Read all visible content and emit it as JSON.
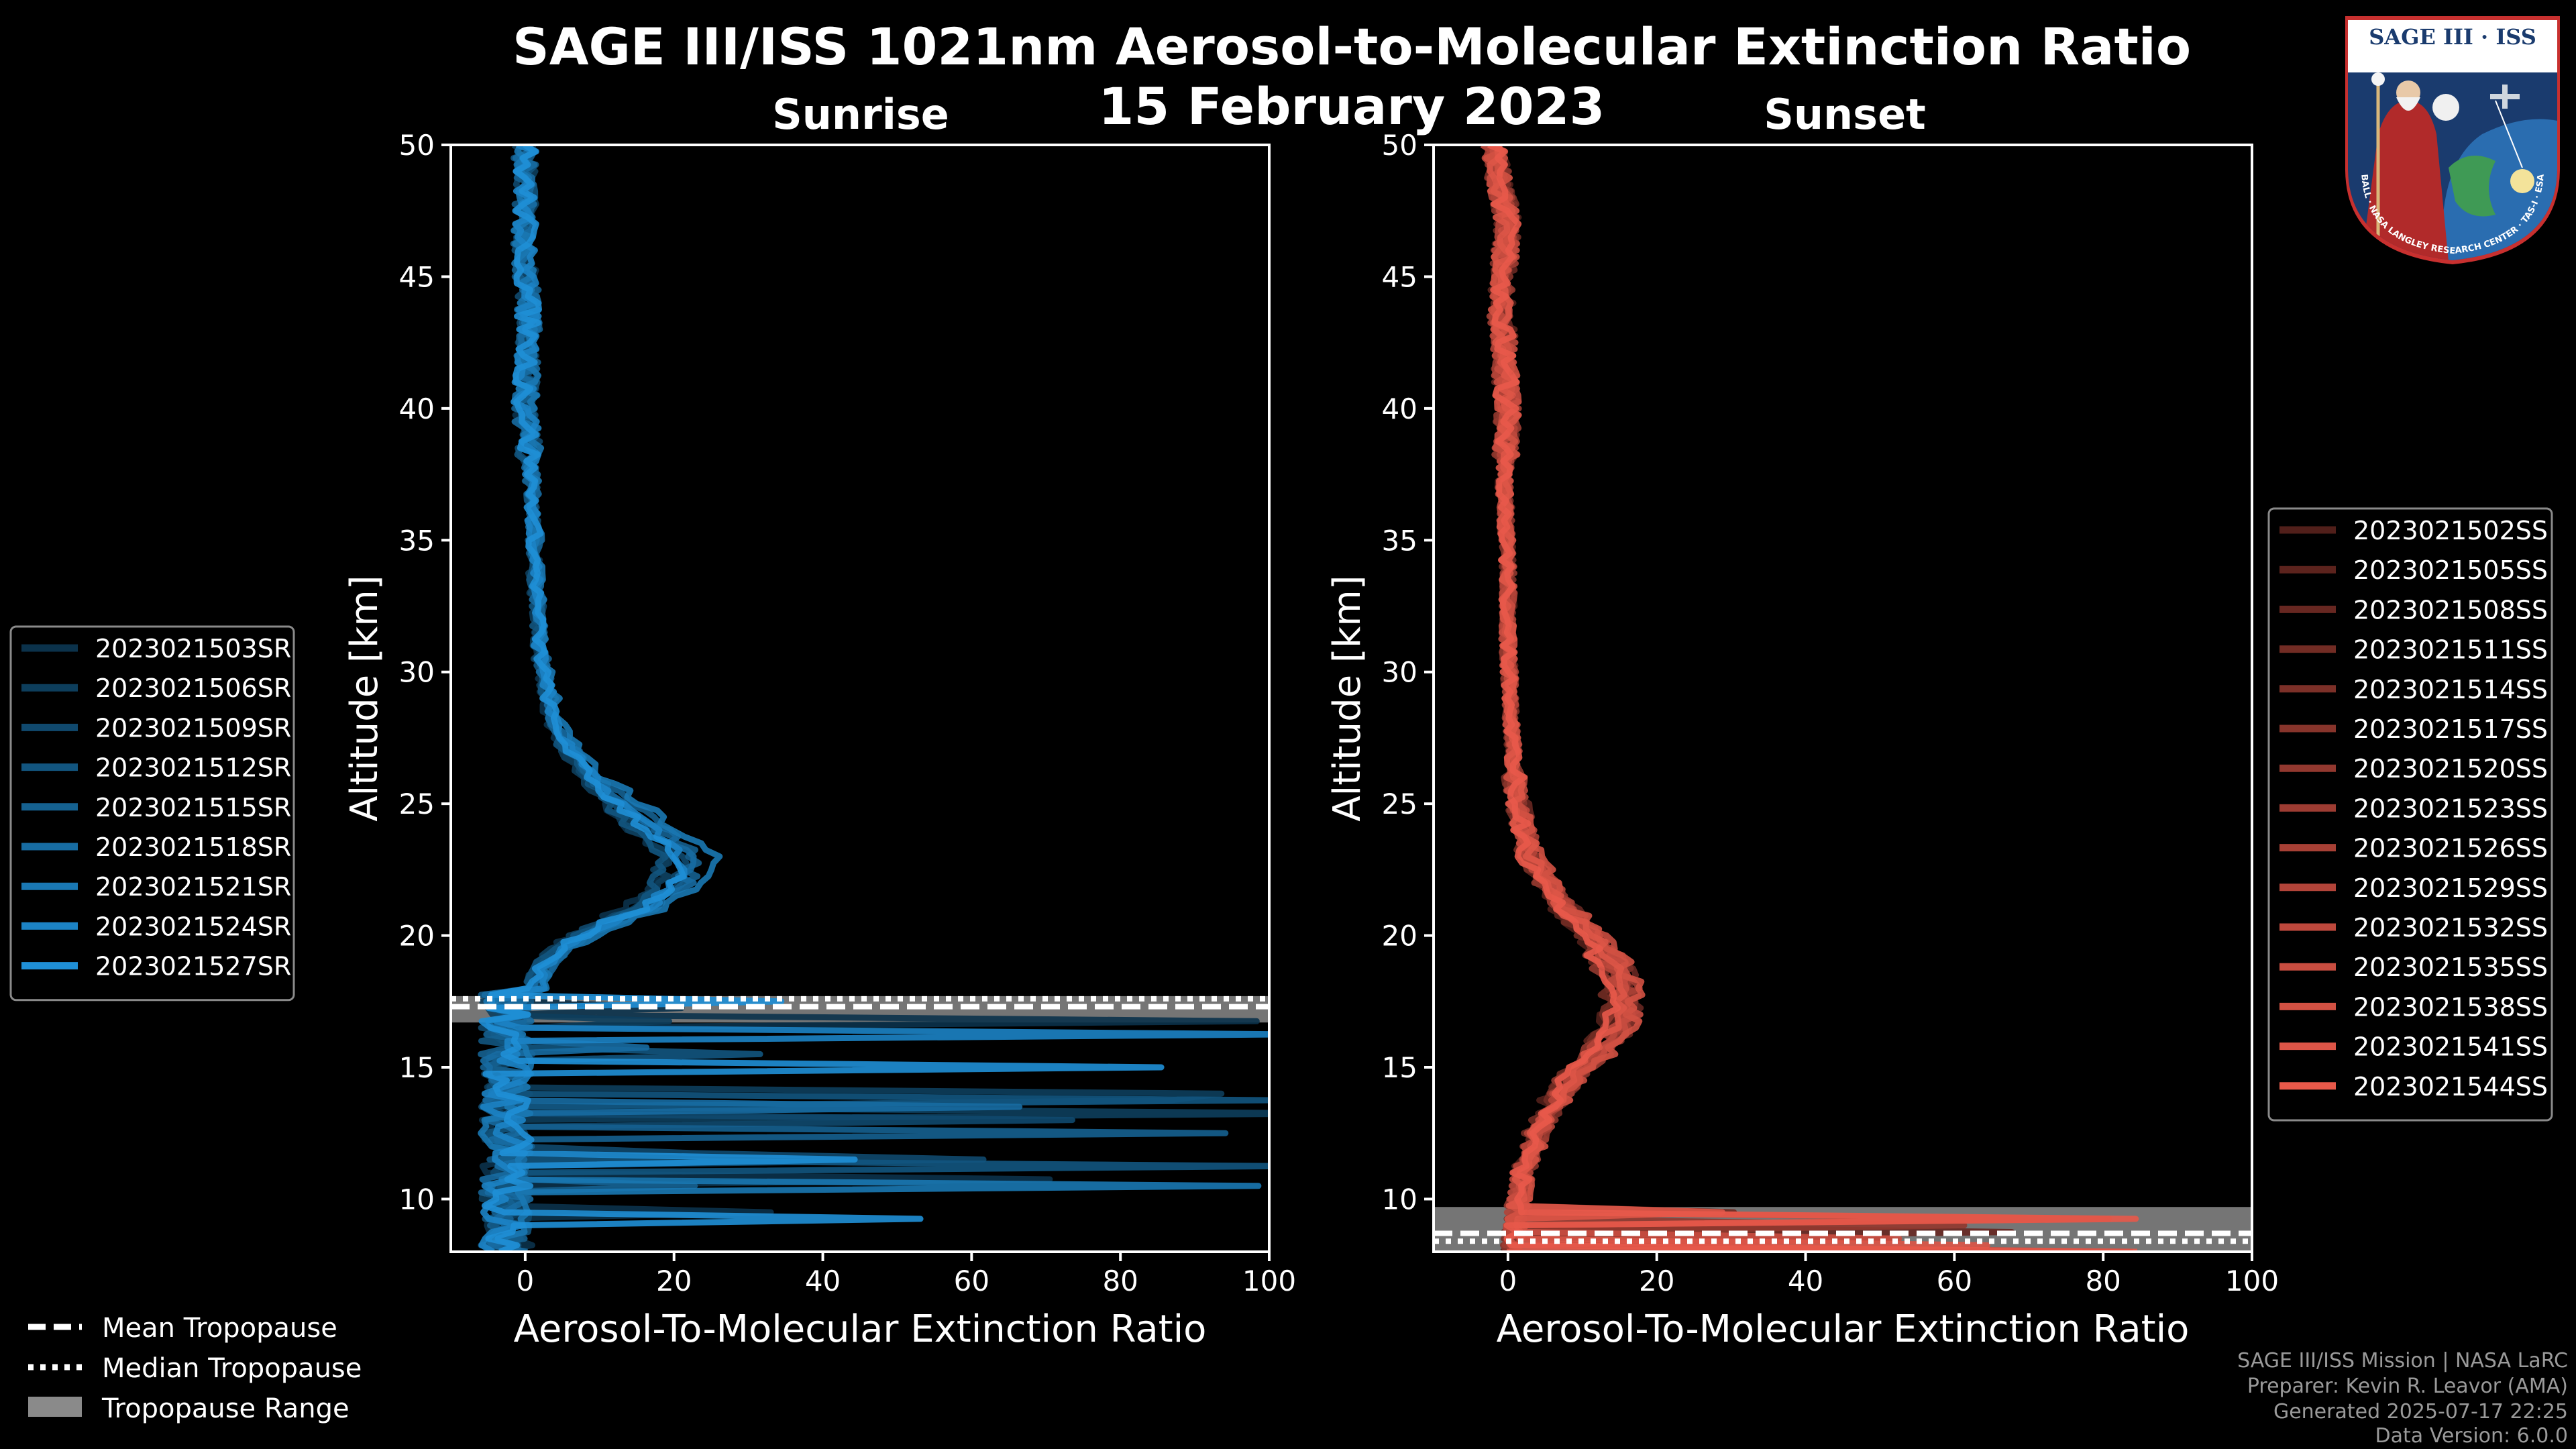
{
  "chart_data": [
    {
      "type": "line",
      "title": "Sunrise",
      "xlabel": "Aerosol-To-Molecular Extinction Ratio",
      "ylabel": "Altitude [km]",
      "xlim": [
        -10,
        100
      ],
      "ylim": [
        8,
        50
      ],
      "xticks": [
        0,
        20,
        40,
        60,
        80,
        100
      ],
      "yticks": [
        10,
        15,
        20,
        25,
        30,
        35,
        40,
        45,
        50
      ],
      "color": "#1f8fd6",
      "tropopause": {
        "mean": 17.3,
        "median": 17.6,
        "range": [
          16.7,
          17.7
        ]
      },
      "profile_shape": [
        [
          0,
          50
        ],
        [
          0,
          46
        ],
        [
          0.5,
          43
        ],
        [
          0,
          40
        ],
        [
          1,
          37
        ],
        [
          1.5,
          34
        ],
        [
          2,
          31
        ],
        [
          4,
          28
        ],
        [
          9,
          26
        ],
        [
          16,
          24.4
        ],
        [
          22,
          23
        ],
        [
          21,
          22
        ],
        [
          16,
          21
        ],
        [
          9,
          20.2
        ],
        [
          4,
          19.3
        ],
        [
          2,
          18.5
        ],
        [
          1,
          17.5
        ],
        [
          0,
          16.5
        ],
        [
          0,
          13
        ],
        [
          0,
          10
        ],
        [
          0,
          8
        ]
      ],
      "legend": {
        "position": "left",
        "entries": [
          "2023021503SR",
          "2023021506SR",
          "2023021509SR",
          "2023021512SR",
          "2023021515SR",
          "2023021518SR",
          "2023021521SR",
          "2023021524SR",
          "2023021527SR"
        ]
      }
    },
    {
      "type": "line",
      "title": "Sunset",
      "xlabel": "Aerosol-To-Molecular Extinction Ratio",
      "ylabel": "Altitude [km]",
      "xlim": [
        -10,
        100
      ],
      "ylim": [
        8,
        50
      ],
      "xticks": [
        0,
        20,
        40,
        60,
        80,
        100
      ],
      "yticks": [
        10,
        15,
        20,
        25,
        30,
        35,
        40,
        45,
        50
      ],
      "color": "#e8594a",
      "tropopause": {
        "mean": 8.7,
        "median": 8.4,
        "range": [
          8.0,
          9.7
        ]
      },
      "profile_shape": [
        [
          -2,
          50
        ],
        [
          0,
          47
        ],
        [
          -1,
          44
        ],
        [
          0,
          40
        ],
        [
          -0.5,
          37
        ],
        [
          0,
          34
        ],
        [
          0,
          31
        ],
        [
          0.5,
          28
        ],
        [
          1,
          25.5
        ],
        [
          3,
          23
        ],
        [
          8,
          21
        ],
        [
          13,
          19.5
        ],
        [
          16,
          18
        ],
        [
          15.5,
          16.8
        ],
        [
          11,
          15.2
        ],
        [
          7,
          14
        ],
        [
          4,
          12.5
        ],
        [
          2,
          11
        ],
        [
          1.5,
          10
        ],
        [
          1,
          9
        ],
        [
          0.5,
          8
        ]
      ],
      "legend": {
        "position": "right",
        "entries": [
          "2023021502SS",
          "2023021505SS",
          "2023021508SS",
          "2023021511SS",
          "2023021514SS",
          "2023021517SS",
          "2023021520SS",
          "2023021523SS",
          "2023021526SS",
          "2023021529SS",
          "2023021532SS",
          "2023021535SS",
          "2023021538SS",
          "2023021541SS",
          "2023021544SS"
        ]
      }
    }
  ],
  "figure": {
    "title_line1": "SAGE III/ISS 1021nm Aerosol-to-Molecular Extinction Ratio",
    "title_line2": "15 February 2023"
  },
  "tropo_legend": [
    "Mean Tropopause",
    "Median Tropopause",
    "Tropopause Range"
  ],
  "footer": [
    "SAGE III/ISS Mission | NASA LaRC",
    "Preparer: Kevin R. Leavor (AMA)",
    "Generated 2025-07-17 22:25",
    "Data Version: 6.0.0"
  ],
  "logo": {
    "title": "SAGE III · ISS",
    "ring_text": "BALL · NASA LANGLEY RESEARCH CENTER · TAS-I · ESA"
  },
  "colors": {
    "background": "#000000",
    "sunrise": "#1f8fd6",
    "sunset": "#e8594a",
    "range_fill": "#8a8a8a"
  }
}
